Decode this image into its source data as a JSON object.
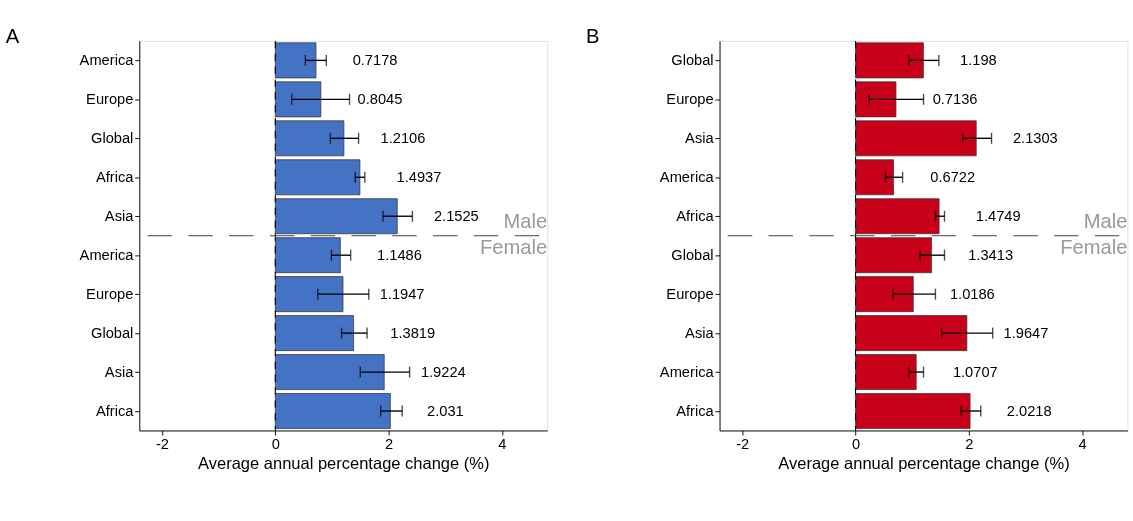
{
  "chart_data": [
    {
      "type": "bar",
      "orientation": "horizontal",
      "title": "A",
      "xlabel": "Average annual percentage change (%)",
      "categories": [
        "America",
        "Europe",
        "Global",
        "Africa",
        "Asia",
        "America",
        "Europe",
        "Global",
        "Asia",
        "Africa"
      ],
      "values": [
        0.7178,
        0.8045,
        1.2106,
        1.4937,
        2.1525,
        1.1486,
        1.1947,
        1.3819,
        1.9224,
        2.031
      ],
      "errors": [
        [
          0.53,
          0.9
        ],
        [
          0.29,
          1.31
        ],
        [
          0.97,
          1.47
        ],
        [
          1.41,
          1.58
        ],
        [
          1.9,
          2.42
        ],
        [
          0.99,
          1.33
        ],
        [
          0.75,
          1.65
        ],
        [
          1.17,
          1.62
        ],
        [
          1.5,
          2.37
        ],
        [
          1.86,
          2.24
        ]
      ],
      "color": "#4472c4",
      "data_labels": true,
      "grid": false,
      "xlim": [
        -2.4,
        4.8
      ],
      "xticks": [
        -2,
        0,
        2,
        4
      ],
      "ref_lines": [
        {
          "axis": "x",
          "value": 0,
          "line_style": "dashed"
        }
      ],
      "annotations": [
        "Male",
        "Female"
      ]
    },
    {
      "type": "bar",
      "orientation": "horizontal",
      "title": "B",
      "xlabel": "Average annual percentage change (%)",
      "categories": [
        "Global",
        "Europe",
        "Asia",
        "America",
        "Africa",
        "Global",
        "Europe",
        "Asia",
        "America",
        "Africa"
      ],
      "values": [
        1.198,
        0.7136,
        2.1303,
        0.6722,
        1.4749,
        1.3413,
        1.0186,
        1.9647,
        1.0707,
        2.0218
      ],
      "errors": [
        [
          0.94,
          1.47
        ],
        [
          0.24,
          1.2
        ],
        [
          1.89,
          2.4
        ],
        [
          0.53,
          0.83
        ],
        [
          1.41,
          1.57
        ],
        [
          1.14,
          1.57
        ],
        [
          0.66,
          1.41
        ],
        [
          1.52,
          2.42
        ],
        [
          0.94,
          1.2
        ],
        [
          1.86,
          2.21
        ]
      ],
      "color": "#c9001a",
      "data_labels": true,
      "grid": false,
      "xlim": [
        -2.4,
        4.8
      ],
      "xticks": [
        -2,
        0,
        2,
        4
      ],
      "ref_lines": [
        {
          "axis": "x",
          "value": 0,
          "line_style": "dashed"
        }
      ],
      "annotations": [
        "Male",
        "Female"
      ]
    }
  ]
}
